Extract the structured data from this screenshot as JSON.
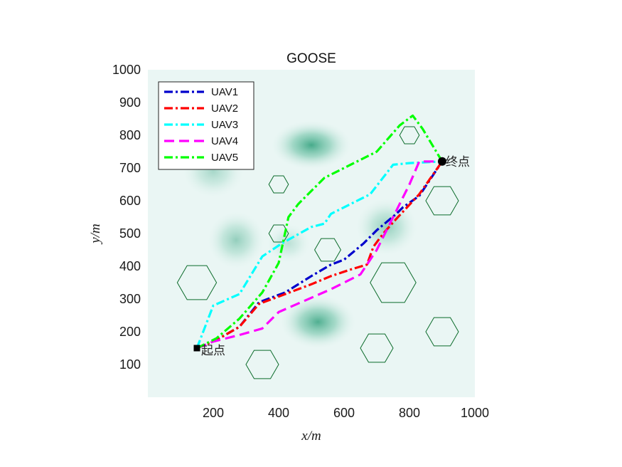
{
  "chart_data": {
    "type": "line",
    "title": "GOOSE",
    "xlabel": "x/m",
    "ylabel": "y/m",
    "xlim": [
      0,
      1000
    ],
    "ylim": [
      0,
      1000
    ],
    "xticks": [
      200,
      400,
      600,
      800,
      1000
    ],
    "yticks": [
      100,
      200,
      300,
      400,
      500,
      600,
      700,
      800,
      900,
      1000
    ],
    "grid": false,
    "legend_position": "top-left",
    "start": {
      "label": "起点",
      "x": 150,
      "y": 150
    },
    "end": {
      "label": "终点",
      "x": 900,
      "y": 720
    },
    "terrain_peaks": [
      {
        "x": 500,
        "y": 770,
        "sx": 90,
        "sy": 55,
        "strength": 0.85
      },
      {
        "x": 520,
        "y": 230,
        "sx": 85,
        "sy": 60,
        "strength": 0.8
      },
      {
        "x": 200,
        "y": 690,
        "sx": 70,
        "sy": 60,
        "strength": 0.35
      },
      {
        "x": 270,
        "y": 480,
        "sx": 65,
        "sy": 65,
        "strength": 0.45
      },
      {
        "x": 730,
        "y": 520,
        "sx": 70,
        "sy": 65,
        "strength": 0.45
      },
      {
        "x": 430,
        "y": 470,
        "sx": 50,
        "sy": 45,
        "strength": 0.25
      }
    ],
    "obstacles": [
      {
        "x": 150,
        "y": 350,
        "r": 60
      },
      {
        "x": 400,
        "y": 650,
        "r": 30
      },
      {
        "x": 400,
        "y": 500,
        "r": 30
      },
      {
        "x": 550,
        "y": 450,
        "r": 40
      },
      {
        "x": 350,
        "y": 100,
        "r": 50
      },
      {
        "x": 700,
        "y": 150,
        "r": 50
      },
      {
        "x": 750,
        "y": 350,
        "r": 70
      },
      {
        "x": 800,
        "y": 800,
        "r": 30
      },
      {
        "x": 900,
        "y": 600,
        "r": 50
      },
      {
        "x": 900,
        "y": 200,
        "r": 50
      }
    ],
    "series": [
      {
        "name": "UAV1",
        "color": "#0000cc",
        "dash": "dashdot",
        "x": [
          150,
          210,
          280,
          340,
          420,
          500,
          560,
          600,
          660,
          700,
          760,
          780,
          830,
          900
        ],
        "y": [
          150,
          175,
          215,
          290,
          320,
          370,
          405,
          420,
          470,
          510,
          560,
          580,
          615,
          720
        ]
      },
      {
        "name": "UAV2",
        "color": "#ff0000",
        "dash": "dashdot",
        "x": [
          150,
          210,
          280,
          340,
          420,
          500,
          560,
          620,
          670,
          690,
          720,
          760,
          830,
          900
        ],
        "y": [
          150,
          175,
          215,
          285,
          315,
          345,
          370,
          390,
          405,
          460,
          500,
          545,
          620,
          720
        ]
      },
      {
        "name": "UAV3",
        "color": "#00ffff",
        "dash": "dashdot",
        "x": [
          150,
          200,
          280,
          350,
          410,
          500,
          540,
          560,
          680,
          750,
          800,
          900
        ],
        "y": [
          150,
          280,
          315,
          430,
          470,
          520,
          530,
          560,
          620,
          710,
          715,
          720
        ]
      },
      {
        "name": "UAV4",
        "color": "#ff00ff",
        "dash": "dash",
        "x": [
          150,
          200,
          280,
          350,
          400,
          560,
          650,
          700,
          750,
          800,
          830,
          900
        ],
        "y": [
          150,
          170,
          190,
          210,
          260,
          330,
          375,
          450,
          550,
          650,
          720,
          720
        ]
      },
      {
        "name": "UAV5",
        "color": "#00ff00",
        "dash": "dashdot",
        "x": [
          150,
          210,
          280,
          350,
          400,
          430,
          460,
          540,
          600,
          700,
          770,
          810,
          840,
          900
        ],
        "y": [
          150,
          180,
          240,
          320,
          410,
          550,
          590,
          670,
          700,
          750,
          830,
          860,
          820,
          720
        ]
      }
    ]
  }
}
